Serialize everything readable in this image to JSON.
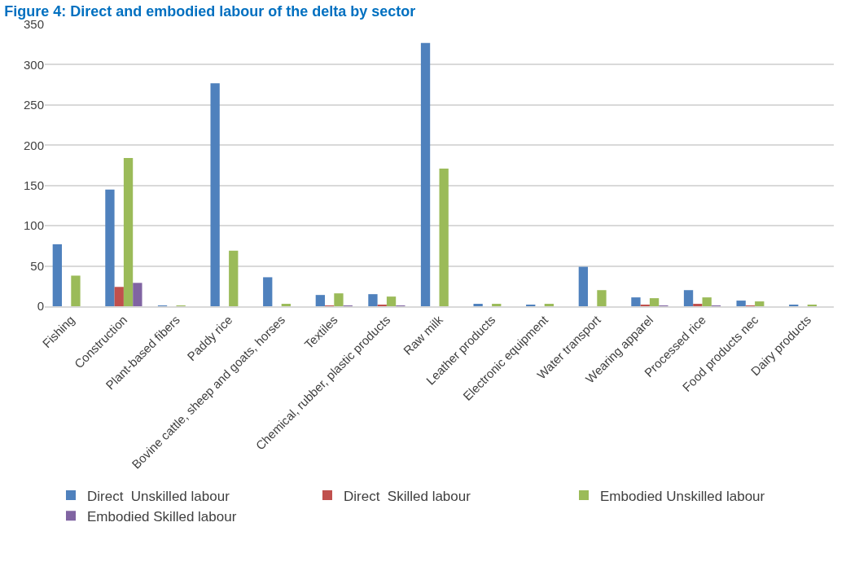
{
  "chart_data": {
    "type": "bar",
    "title": "Figure 4: Direct and embodied labour of the delta by sector",
    "categories": [
      "Fishing",
      "Construction",
      "Plant-based fibers",
      "Paddy rice",
      "Bovine cattle, sheep and goats, horses",
      "Textiles",
      "Chemical, rubber, plastic products",
      "Raw milk",
      "Leather products",
      "Electronic equipment",
      "Water transport",
      "Wearing apparel",
      "Processed rice",
      "Food products nec",
      "Dairy products"
    ],
    "series": [
      {
        "name": "Direct  Unskilled labour",
        "color": "#4f81bd",
        "values": [
          77,
          145,
          1,
          277,
          36,
          14,
          15,
          327,
          3,
          2,
          49,
          11,
          20,
          7,
          2
        ]
      },
      {
        "name": "Direct  Skilled labour",
        "color": "#c0504d",
        "values": [
          0,
          24,
          0,
          0,
          0,
          1,
          2,
          0,
          0,
          0,
          0,
          2,
          3,
          1,
          0
        ]
      },
      {
        "name": "Embodied Unskilled labour",
        "color": "#9bbb59",
        "values": [
          38,
          184,
          1,
          69,
          3,
          16,
          12,
          171,
          3,
          3,
          20,
          10,
          11,
          6,
          2
        ]
      },
      {
        "name": "Embodied Skilled labour",
        "color": "#8064a2",
        "values": [
          0,
          29,
          0,
          0,
          0,
          1,
          1,
          0,
          0,
          0,
          0,
          1,
          1,
          0,
          0
        ]
      }
    ],
    "ylim": [
      0,
      350
    ],
    "yticks": [
      0,
      50,
      100,
      150,
      200,
      250,
      300,
      350
    ],
    "grid": "y",
    "legend": "bottom"
  }
}
